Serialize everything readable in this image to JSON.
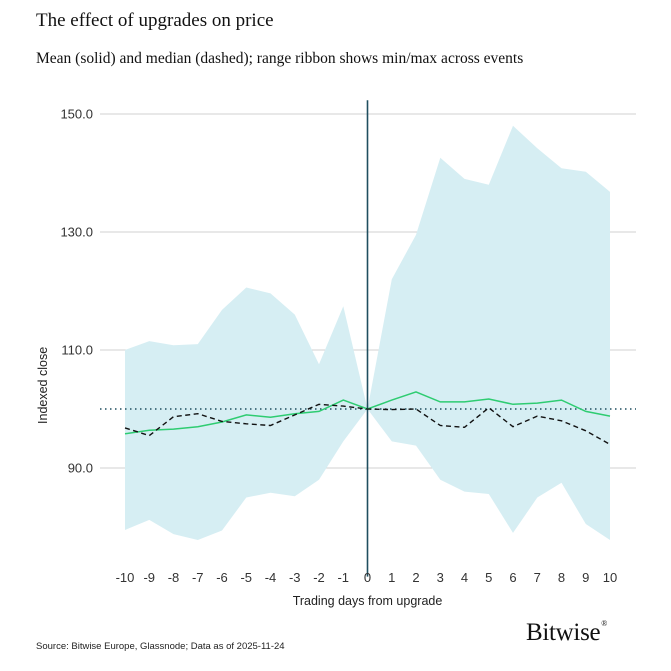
{
  "brand": {
    "name": "Bitwise",
    "mark": "®"
  },
  "footer": {
    "source": "Source: Bitwise Europe, Glassnode; Data as of 2025-11-24"
  },
  "chart_data": {
    "type": "line",
    "title": "The effect of upgrades on price",
    "subtitle": "Mean (solid) and median (dashed); range ribbon shows min/max across events",
    "xlabel": "Trading days from upgrade",
    "ylabel": "Indexed close",
    "x": [
      -10,
      -9,
      -8,
      -7,
      -6,
      -5,
      -4,
      -3,
      -2,
      -1,
      0,
      1,
      2,
      3,
      4,
      5,
      6,
      7,
      8,
      9,
      10
    ],
    "xlim": [
      -10,
      10
    ],
    "ylim": [
      76,
      152
    ],
    "yticks": [
      90,
      110,
      130,
      150
    ],
    "ytick_labels": [
      "90.0",
      "110.0",
      "130.0",
      "150.0"
    ],
    "xtick_labels": [
      "-10",
      "-9",
      "-8",
      "-7",
      "-6",
      "-5",
      "-4",
      "-3",
      "-2",
      "-1",
      "0",
      "1",
      "2",
      "3",
      "4",
      "5",
      "6",
      "7",
      "8",
      "9",
      "10"
    ],
    "grid": true,
    "series": [
      {
        "name": "Mean",
        "style": "solid",
        "color": "#2ecc71",
        "values": [
          95.8,
          96.4,
          96.6,
          97.0,
          97.8,
          99.0,
          98.6,
          99.2,
          99.6,
          101.5,
          100.0,
          101.5,
          102.9,
          101.2,
          101.2,
          101.7,
          100.8,
          101.0,
          101.5,
          99.6,
          98.8
        ]
      },
      {
        "name": "Median",
        "style": "dashed",
        "color": "#111111",
        "values": [
          96.8,
          95.5,
          98.7,
          99.2,
          97.9,
          97.5,
          97.2,
          99.0,
          100.8,
          100.5,
          100.0,
          99.9,
          100.0,
          97.2,
          96.9,
          100.2,
          97.0,
          98.8,
          98.0,
          96.3,
          94.0
        ]
      },
      {
        "name": "Range",
        "type": "ribbon",
        "color": "#d6eef3",
        "min": [
          79.5,
          81.2,
          78.8,
          77.8,
          79.4,
          85.0,
          85.8,
          85.2,
          88.0,
          94.5,
          100.0,
          94.5,
          93.8,
          88.0,
          86.0,
          85.6,
          79.0,
          85.0,
          87.5,
          80.5,
          77.8
        ],
        "max": [
          110.0,
          111.5,
          110.8,
          111.0,
          116.8,
          120.6,
          119.6,
          116.0,
          107.6,
          117.4,
          100.0,
          122.0,
          129.5,
          142.6,
          139.0,
          138.0,
          148.0,
          144.2,
          140.8,
          140.2,
          136.8
        ]
      }
    ],
    "reference_lines": [
      {
        "axis": "x",
        "value": 0,
        "style": "solid",
        "color": "#1f4e5f"
      },
      {
        "axis": "y",
        "value": 100,
        "style": "dotted",
        "color": "#1f4e5f"
      }
    ]
  }
}
